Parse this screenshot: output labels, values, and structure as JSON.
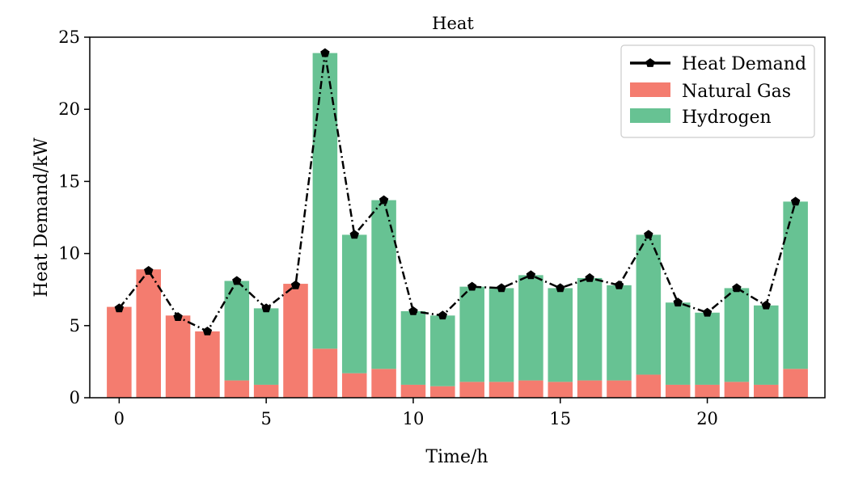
{
  "chart_data": {
    "type": "bar",
    "stacked": true,
    "title": "Heat",
    "xlabel": "Time/h",
    "ylabel": "Heat Demand/kW",
    "xlim": [
      -1,
      24
    ],
    "ylim": [
      0,
      25
    ],
    "xticks": [
      0,
      5,
      10,
      15,
      20
    ],
    "yticks": [
      0,
      5,
      10,
      15,
      20,
      25
    ],
    "legend_position": "top-right",
    "x": [
      0,
      1,
      2,
      3,
      4,
      5,
      6,
      7,
      8,
      9,
      10,
      11,
      12,
      13,
      14,
      15,
      16,
      17,
      18,
      19,
      20,
      21,
      22,
      23
    ],
    "series": [
      {
        "name": "Natural Gas",
        "kind": "bar",
        "color": "#f47c6f",
        "values": [
          6.3,
          8.9,
          5.7,
          4.6,
          1.2,
          0.9,
          7.9,
          3.4,
          1.7,
          2.0,
          0.9,
          0.8,
          1.1,
          1.1,
          1.2,
          1.1,
          1.2,
          1.2,
          1.6,
          0.9,
          0.9,
          1.1,
          0.9,
          2.0
        ]
      },
      {
        "name": "Hydrogen",
        "kind": "bar",
        "color": "#67c293",
        "values": [
          0,
          0,
          0,
          0,
          6.9,
          5.3,
          0,
          20.5,
          9.6,
          11.7,
          5.1,
          4.9,
          6.6,
          6.5,
          7.3,
          6.5,
          7.1,
          6.6,
          9.7,
          5.7,
          5.0,
          6.5,
          5.5,
          11.6
        ]
      },
      {
        "name": "Heat Demand",
        "kind": "line",
        "color": "#000000",
        "values": [
          6.2,
          8.8,
          5.6,
          4.6,
          8.1,
          6.2,
          7.8,
          23.9,
          11.3,
          13.7,
          6.0,
          5.7,
          7.7,
          7.6,
          8.5,
          7.6,
          8.3,
          7.8,
          11.3,
          6.6,
          5.9,
          7.6,
          6.4,
          13.6
        ]
      }
    ]
  }
}
